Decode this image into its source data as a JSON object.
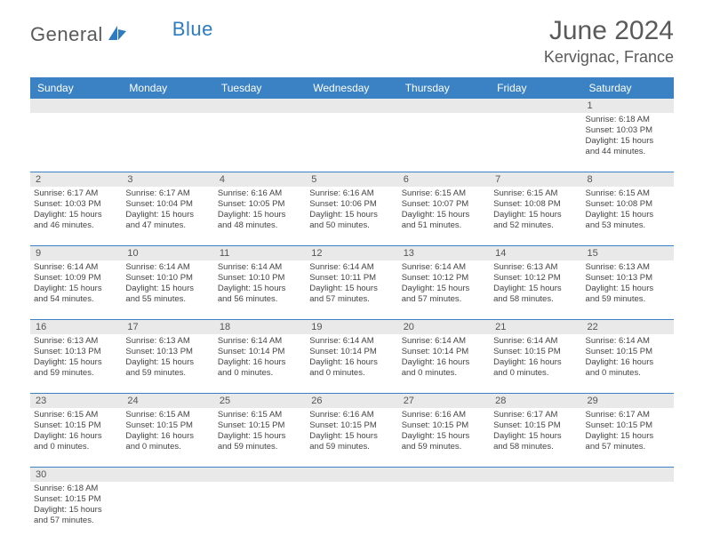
{
  "brand": {
    "text1": "General",
    "text2": "Blue"
  },
  "title": {
    "month_year": "June 2024",
    "location": "Kervignac, France"
  },
  "colors": {
    "header_bg": "#3b82c4",
    "header_text": "#ffffff",
    "daynum_bg": "#e9e9e9",
    "row_border": "#3b82c4",
    "body_text": "#444444",
    "title_text": "#5a5a5a"
  },
  "day_headers": [
    "Sunday",
    "Monday",
    "Tuesday",
    "Wednesday",
    "Thursday",
    "Friday",
    "Saturday"
  ],
  "weeks": [
    {
      "nums": [
        "",
        "",
        "",
        "",
        "",
        "",
        "1"
      ],
      "cells": [
        null,
        null,
        null,
        null,
        null,
        null,
        {
          "sunrise": "Sunrise: 6:18 AM",
          "sunset": "Sunset: 10:03 PM",
          "day1": "Daylight: 15 hours",
          "day2": "and 44 minutes."
        }
      ]
    },
    {
      "nums": [
        "2",
        "3",
        "4",
        "5",
        "6",
        "7",
        "8"
      ],
      "cells": [
        {
          "sunrise": "Sunrise: 6:17 AM",
          "sunset": "Sunset: 10:03 PM",
          "day1": "Daylight: 15 hours",
          "day2": "and 46 minutes."
        },
        {
          "sunrise": "Sunrise: 6:17 AM",
          "sunset": "Sunset: 10:04 PM",
          "day1": "Daylight: 15 hours",
          "day2": "and 47 minutes."
        },
        {
          "sunrise": "Sunrise: 6:16 AM",
          "sunset": "Sunset: 10:05 PM",
          "day1": "Daylight: 15 hours",
          "day2": "and 48 minutes."
        },
        {
          "sunrise": "Sunrise: 6:16 AM",
          "sunset": "Sunset: 10:06 PM",
          "day1": "Daylight: 15 hours",
          "day2": "and 50 minutes."
        },
        {
          "sunrise": "Sunrise: 6:15 AM",
          "sunset": "Sunset: 10:07 PM",
          "day1": "Daylight: 15 hours",
          "day2": "and 51 minutes."
        },
        {
          "sunrise": "Sunrise: 6:15 AM",
          "sunset": "Sunset: 10:08 PM",
          "day1": "Daylight: 15 hours",
          "day2": "and 52 minutes."
        },
        {
          "sunrise": "Sunrise: 6:15 AM",
          "sunset": "Sunset: 10:08 PM",
          "day1": "Daylight: 15 hours",
          "day2": "and 53 minutes."
        }
      ]
    },
    {
      "nums": [
        "9",
        "10",
        "11",
        "12",
        "13",
        "14",
        "15"
      ],
      "cells": [
        {
          "sunrise": "Sunrise: 6:14 AM",
          "sunset": "Sunset: 10:09 PM",
          "day1": "Daylight: 15 hours",
          "day2": "and 54 minutes."
        },
        {
          "sunrise": "Sunrise: 6:14 AM",
          "sunset": "Sunset: 10:10 PM",
          "day1": "Daylight: 15 hours",
          "day2": "and 55 minutes."
        },
        {
          "sunrise": "Sunrise: 6:14 AM",
          "sunset": "Sunset: 10:10 PM",
          "day1": "Daylight: 15 hours",
          "day2": "and 56 minutes."
        },
        {
          "sunrise": "Sunrise: 6:14 AM",
          "sunset": "Sunset: 10:11 PM",
          "day1": "Daylight: 15 hours",
          "day2": "and 57 minutes."
        },
        {
          "sunrise": "Sunrise: 6:14 AM",
          "sunset": "Sunset: 10:12 PM",
          "day1": "Daylight: 15 hours",
          "day2": "and 57 minutes."
        },
        {
          "sunrise": "Sunrise: 6:13 AM",
          "sunset": "Sunset: 10:12 PM",
          "day1": "Daylight: 15 hours",
          "day2": "and 58 minutes."
        },
        {
          "sunrise": "Sunrise: 6:13 AM",
          "sunset": "Sunset: 10:13 PM",
          "day1": "Daylight: 15 hours",
          "day2": "and 59 minutes."
        }
      ]
    },
    {
      "nums": [
        "16",
        "17",
        "18",
        "19",
        "20",
        "21",
        "22"
      ],
      "cells": [
        {
          "sunrise": "Sunrise: 6:13 AM",
          "sunset": "Sunset: 10:13 PM",
          "day1": "Daylight: 15 hours",
          "day2": "and 59 minutes."
        },
        {
          "sunrise": "Sunrise: 6:13 AM",
          "sunset": "Sunset: 10:13 PM",
          "day1": "Daylight: 15 hours",
          "day2": "and 59 minutes."
        },
        {
          "sunrise": "Sunrise: 6:14 AM",
          "sunset": "Sunset: 10:14 PM",
          "day1": "Daylight: 16 hours",
          "day2": "and 0 minutes."
        },
        {
          "sunrise": "Sunrise: 6:14 AM",
          "sunset": "Sunset: 10:14 PM",
          "day1": "Daylight: 16 hours",
          "day2": "and 0 minutes."
        },
        {
          "sunrise": "Sunrise: 6:14 AM",
          "sunset": "Sunset: 10:14 PM",
          "day1": "Daylight: 16 hours",
          "day2": "and 0 minutes."
        },
        {
          "sunrise": "Sunrise: 6:14 AM",
          "sunset": "Sunset: 10:15 PM",
          "day1": "Daylight: 16 hours",
          "day2": "and 0 minutes."
        },
        {
          "sunrise": "Sunrise: 6:14 AM",
          "sunset": "Sunset: 10:15 PM",
          "day1": "Daylight: 16 hours",
          "day2": "and 0 minutes."
        }
      ]
    },
    {
      "nums": [
        "23",
        "24",
        "25",
        "26",
        "27",
        "28",
        "29"
      ],
      "cells": [
        {
          "sunrise": "Sunrise: 6:15 AM",
          "sunset": "Sunset: 10:15 PM",
          "day1": "Daylight: 16 hours",
          "day2": "and 0 minutes."
        },
        {
          "sunrise": "Sunrise: 6:15 AM",
          "sunset": "Sunset: 10:15 PM",
          "day1": "Daylight: 16 hours",
          "day2": "and 0 minutes."
        },
        {
          "sunrise": "Sunrise: 6:15 AM",
          "sunset": "Sunset: 10:15 PM",
          "day1": "Daylight: 15 hours",
          "day2": "and 59 minutes."
        },
        {
          "sunrise": "Sunrise: 6:16 AM",
          "sunset": "Sunset: 10:15 PM",
          "day1": "Daylight: 15 hours",
          "day2": "and 59 minutes."
        },
        {
          "sunrise": "Sunrise: 6:16 AM",
          "sunset": "Sunset: 10:15 PM",
          "day1": "Daylight: 15 hours",
          "day2": "and 59 minutes."
        },
        {
          "sunrise": "Sunrise: 6:17 AM",
          "sunset": "Sunset: 10:15 PM",
          "day1": "Daylight: 15 hours",
          "day2": "and 58 minutes."
        },
        {
          "sunrise": "Sunrise: 6:17 AM",
          "sunset": "Sunset: 10:15 PM",
          "day1": "Daylight: 15 hours",
          "day2": "and 57 minutes."
        }
      ]
    },
    {
      "nums": [
        "30",
        "",
        "",
        "",
        "",
        "",
        ""
      ],
      "cells": [
        {
          "sunrise": "Sunrise: 6:18 AM",
          "sunset": "Sunset: 10:15 PM",
          "day1": "Daylight: 15 hours",
          "day2": "and 57 minutes."
        },
        null,
        null,
        null,
        null,
        null,
        null
      ]
    }
  ]
}
